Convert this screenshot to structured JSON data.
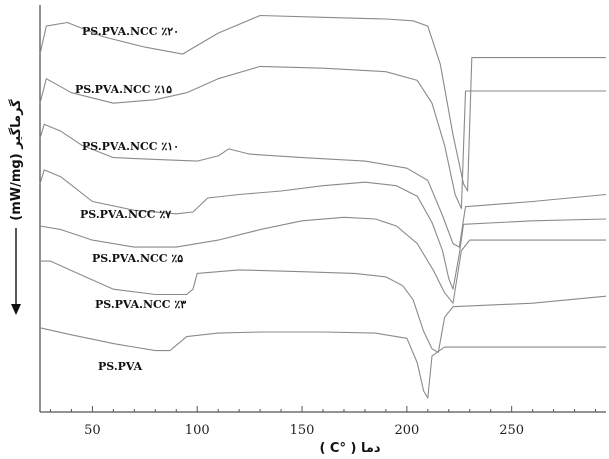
{
  "chart_data": {
    "type": "line",
    "title": "",
    "xlabel": "دما ( °C )",
    "ylabel": "گرماگیر (mW/mg)",
    "xlim": [
      25,
      295
    ],
    "x_ticks": [
      "50",
      "100",
      "150",
      "200",
      "250"
    ],
    "grid": false,
    "legend": "none",
    "colors": {
      "line": "#8a8a8a",
      "axis": "#555555",
      "text": "#111111"
    },
    "series": [
      {
        "name": "PS.PVA.NCC ٪۲۰",
        "x": [
          25,
          28,
          38,
          55,
          75,
          93,
          110,
          130,
          160,
          190,
          203,
          210,
          216,
          222,
          227,
          229,
          231,
          260,
          295
        ],
        "y": [
          7.2,
          8.0,
          8.1,
          7.7,
          7.4,
          7.2,
          7.8,
          8.3,
          8.25,
          8.2,
          8.15,
          8.0,
          6.9,
          4.9,
          3.5,
          3.3,
          7.1,
          7.1,
          7.1
        ]
      },
      {
        "name": "PS.PVA.NCC ٪۱۵",
        "x": [
          25,
          28,
          40,
          60,
          80,
          95,
          110,
          130,
          160,
          190,
          205,
          212,
          218,
          223,
          226,
          228,
          260,
          295
        ],
        "y": [
          5.8,
          6.5,
          6.1,
          5.8,
          5.9,
          6.1,
          6.5,
          6.85,
          6.8,
          6.7,
          6.45,
          5.8,
          4.6,
          3.2,
          2.8,
          6.15,
          6.15,
          6.15
        ]
      },
      {
        "name": "PS.PVA.NCC ٪۱۰",
        "x": [
          25,
          27,
          35,
          45,
          60,
          80,
          100,
          110,
          115,
          125,
          150,
          180,
          200,
          210,
          217,
          222,
          225,
          228,
          260,
          295
        ],
        "y": [
          4.8,
          5.2,
          5.0,
          4.6,
          4.25,
          4.2,
          4.15,
          4.3,
          4.5,
          4.35,
          4.25,
          4.15,
          3.95,
          3.6,
          2.6,
          1.8,
          1.7,
          2.85,
          3.0,
          3.2
        ]
      },
      {
        "name": "PS.PVA.NCC ٪۷",
        "x": [
          25,
          27,
          35,
          50,
          70,
          90,
          98,
          105,
          120,
          140,
          160,
          180,
          195,
          205,
          212,
          217,
          220,
          222,
          225,
          227,
          260,
          295
        ],
        "y": [
          3.5,
          3.9,
          3.7,
          3.0,
          2.75,
          2.65,
          2.7,
          3.1,
          3.2,
          3.3,
          3.45,
          3.55,
          3.45,
          3.15,
          2.4,
          1.6,
          0.8,
          0.5,
          1.5,
          2.35,
          2.45,
          2.5
        ]
      },
      {
        "name": "PS.PVA.NCC ٪۵",
        "x": [
          25,
          35,
          50,
          70,
          90,
          110,
          130,
          150,
          170,
          185,
          195,
          205,
          213,
          218,
          222,
          226,
          230,
          260,
          295
        ],
        "y": [
          2.3,
          2.2,
          1.9,
          1.7,
          1.7,
          1.9,
          2.2,
          2.45,
          2.55,
          2.5,
          2.3,
          1.8,
          1.0,
          0.4,
          0.1,
          1.6,
          1.9,
          1.9,
          1.9
        ]
      },
      {
        "name": "PS.PVA.NCC ٪۳",
        "x": [
          25,
          30,
          45,
          60,
          80,
          95,
          98,
          100,
          120,
          150,
          175,
          190,
          198,
          203,
          208,
          212,
          215,
          218,
          222,
          260,
          295
        ],
        "y": [
          1.3,
          1.3,
          0.9,
          0.5,
          0.35,
          0.35,
          0.5,
          0.95,
          1.05,
          1.0,
          0.95,
          0.85,
          0.6,
          0.2,
          -0.7,
          -1.2,
          -1.3,
          -0.3,
          0.0,
          0.1,
          0.3
        ]
      },
      {
        "name": "PS.PVA",
        "x": [
          25,
          40,
          60,
          80,
          87,
          95,
          110,
          130,
          160,
          185,
          200,
          205,
          208,
          210,
          212,
          218,
          260,
          295
        ],
        "y": [
          -0.6,
          -0.8,
          -1.05,
          -1.25,
          -1.25,
          -0.85,
          -0.75,
          -0.72,
          -0.72,
          -0.75,
          -0.9,
          -1.6,
          -2.4,
          -2.6,
          -1.4,
          -1.15,
          -1.15,
          -1.15
        ]
      }
    ]
  }
}
